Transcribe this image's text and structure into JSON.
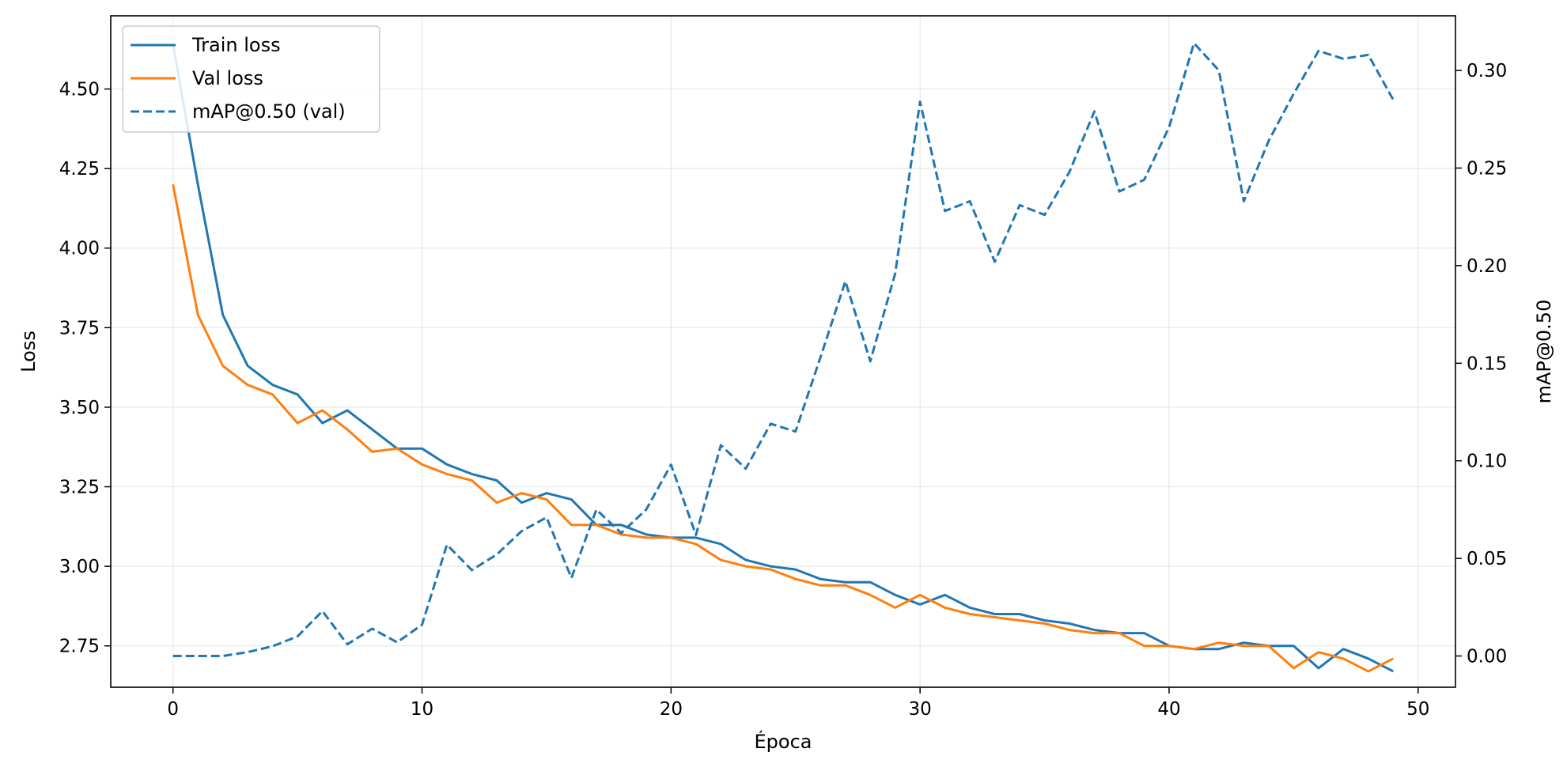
{
  "chart_data": {
    "type": "line",
    "xlabel": "Época",
    "ylabel_left": "Loss",
    "ylabel_right": "mAP@0.50",
    "xlim": [
      -2.5,
      51.5
    ],
    "ylim_left": [
      2.62,
      4.73
    ],
    "ylim_right": [
      -0.016,
      0.328
    ],
    "x_ticks": [
      0,
      10,
      20,
      30,
      40,
      50
    ],
    "y_left_ticks": [
      "2.75",
      "3.00",
      "3.25",
      "3.50",
      "3.75",
      "4.00",
      "4.25",
      "4.50"
    ],
    "y_right_ticks": [
      "0.00",
      "0.05",
      "0.10",
      "0.15",
      "0.20",
      "0.25",
      "0.30"
    ],
    "grid": true,
    "legend_position": "top-left",
    "x": [
      0,
      1,
      2,
      3,
      4,
      5,
      6,
      7,
      8,
      9,
      10,
      11,
      12,
      13,
      14,
      15,
      16,
      17,
      18,
      19,
      20,
      21,
      22,
      23,
      24,
      25,
      26,
      27,
      28,
      29,
      30,
      31,
      32,
      33,
      34,
      35,
      36,
      37,
      38,
      39,
      40,
      41,
      42,
      43,
      44,
      45,
      46,
      47,
      48,
      49
    ],
    "series": [
      {
        "name": "Train loss",
        "axis": "left",
        "color": "#1f77b4",
        "style": "solid",
        "values": [
          4.64,
          4.2,
          3.79,
          3.63,
          3.57,
          3.54,
          3.45,
          3.49,
          3.43,
          3.37,
          3.37,
          3.32,
          3.29,
          3.27,
          3.2,
          3.23,
          3.21,
          3.13,
          3.13,
          3.1,
          3.09,
          3.09,
          3.07,
          3.02,
          3.0,
          2.99,
          2.96,
          2.95,
          2.95,
          2.91,
          2.88,
          2.91,
          2.87,
          2.85,
          2.85,
          2.83,
          2.82,
          2.8,
          2.79,
          2.79,
          2.75,
          2.74,
          2.74,
          2.76,
          2.75,
          2.75,
          2.68,
          2.74,
          2.71,
          2.67
        ]
      },
      {
        "name": "Val loss",
        "axis": "left",
        "color": "#ff7f0e",
        "style": "solid",
        "values": [
          4.2,
          3.79,
          3.63,
          3.57,
          3.54,
          3.45,
          3.49,
          3.43,
          3.36,
          3.37,
          3.32,
          3.29,
          3.27,
          3.2,
          3.23,
          3.21,
          3.13,
          3.13,
          3.1,
          3.09,
          3.09,
          3.07,
          3.02,
          3.0,
          2.99,
          2.96,
          2.94,
          2.94,
          2.91,
          2.87,
          2.91,
          2.87,
          2.85,
          2.84,
          2.83,
          2.82,
          2.8,
          2.79,
          2.79,
          2.75,
          2.75,
          2.74,
          2.76,
          2.75,
          2.75,
          2.68,
          2.73,
          2.71,
          2.67,
          2.71
        ]
      },
      {
        "name": "mAP@0.50 (val)",
        "axis": "right",
        "color": "#1f77b4",
        "style": "dashed",
        "values": [
          0.0,
          0.0,
          0.0,
          0.002,
          0.005,
          0.01,
          0.023,
          0.006,
          0.014,
          0.007,
          0.016,
          0.057,
          0.044,
          0.052,
          0.064,
          0.071,
          0.04,
          0.075,
          0.063,
          0.075,
          0.098,
          0.062,
          0.108,
          0.096,
          0.119,
          0.115,
          0.153,
          0.192,
          0.151,
          0.196,
          0.284,
          0.228,
          0.233,
          0.202,
          0.231,
          0.226,
          0.248,
          0.279,
          0.238,
          0.244,
          0.271,
          0.314,
          0.3,
          0.233,
          0.264,
          0.288,
          0.31,
          0.306,
          0.308,
          0.285
        ]
      }
    ]
  }
}
